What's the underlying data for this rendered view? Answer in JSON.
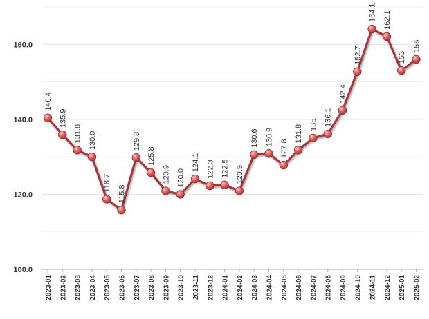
{
  "chart_data": {
    "type": "line",
    "title": "",
    "xlabel": "",
    "ylabel": "",
    "ylim": [
      100,
      170
    ],
    "yticks": [
      100,
      120,
      140,
      160
    ],
    "ytick_labels": [
      "100.0",
      "120.0",
      "140.0",
      "160.0"
    ],
    "grid": "horizontal",
    "legend": "none",
    "categories": [
      "2023-01",
      "2023-02",
      "2023-03",
      "2023-04",
      "2023-05",
      "2023-06",
      "2023-07",
      "2023-08",
      "2023-09",
      "2023-10",
      "2023-11",
      "2023-12",
      "2024-01",
      "2024-02",
      "2024-03",
      "2024-04",
      "2024-05",
      "2024-06",
      "2024-07",
      "2024-08",
      "2024-09",
      "2024-10",
      "2024-11",
      "2024-12",
      "2025-01",
      "2025-02"
    ],
    "series": [
      {
        "values": [
          140.4,
          135.9,
          131.8,
          130.0,
          118.7,
          115.8,
          129.8,
          125.8,
          120.9,
          120.0,
          124.1,
          122.3,
          122.5,
          120.9,
          130.6,
          130.9,
          127.8,
          131.8,
          135,
          136.1,
          142.4,
          152.7,
          164.1,
          162.1,
          153,
          156
        ],
        "labels": [
          "140.4",
          "135.9",
          "131.8",
          "130.0",
          "118.7",
          "115.8",
          "129.8",
          "125.8",
          "120.9",
          "120.0",
          "124.1",
          "122.3",
          "122.5",
          "120.9",
          "130.6",
          "130.9",
          "127.8",
          "131.8",
          "135",
          "136.1",
          "142.4",
          "152.7",
          "164.1",
          "162.1",
          "153",
          "156"
        ],
        "line_color": "#a6363d",
        "marker_color": "#e26b6b"
      }
    ],
    "grid_color": "#e6e6e6",
    "axis_color": "#b0b0b0"
  }
}
